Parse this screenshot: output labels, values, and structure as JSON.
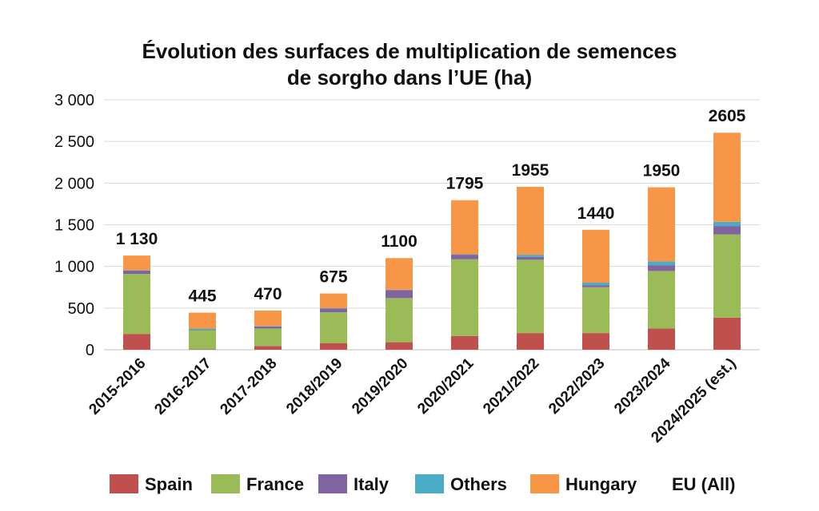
{
  "chart_data": {
    "type": "bar",
    "stacked": true,
    "title_lines": [
      "Évolution des surfaces de multiplication de semences",
      "de sorgho dans l’UE (ha)"
    ],
    "xlabel": "",
    "ylabel": "",
    "ylim": [
      0,
      3000
    ],
    "yticks": [
      {
        "value": 0,
        "label": "0"
      },
      {
        "value": 500,
        "label": "500"
      },
      {
        "value": 1000,
        "label": "1 000"
      },
      {
        "value": 1500,
        "label": "1 500"
      },
      {
        "value": 2000,
        "label": "2 000"
      },
      {
        "value": 2500,
        "label": "2 500"
      },
      {
        "value": 3000,
        "label": "3 000"
      }
    ],
    "grid": true,
    "legend_position": "bottom",
    "categories": [
      "2015-2016",
      "2016-2017",
      "2017-2018",
      "2018/2019",
      "2019/2020",
      "2020/2021",
      "2021/2022",
      "2022/2023",
      "2023/2024",
      "2024/2025 (est.)"
    ],
    "series": [
      {
        "name": "Spain",
        "color": "#c0504d",
        "values": [
          190,
          5,
          45,
          80,
          90,
          165,
          200,
          200,
          255,
          385
        ]
      },
      {
        "name": "France",
        "color": "#9bbb59",
        "values": [
          720,
          230,
          210,
          370,
          530,
          920,
          880,
          550,
          690,
          1000
        ]
      },
      {
        "name": "Italy",
        "color": "#8064a2",
        "values": [
          40,
          5,
          25,
          45,
          95,
          55,
          35,
          25,
          70,
          100
        ]
      },
      {
        "name": "Others",
        "color": "#4bacc6",
        "values": [
          5,
          15,
          5,
          5,
          5,
          5,
          25,
          30,
          45,
          50
        ]
      },
      {
        "name": "Hungary",
        "color": "#f79646",
        "values": [
          175,
          190,
          185,
          175,
          380,
          650,
          815,
          635,
          890,
          1070
        ]
      }
    ],
    "totals": {
      "name": "EU (All)",
      "values": [
        1130,
        445,
        470,
        675,
        1100,
        1795,
        1955,
        1440,
        1950,
        2605
      ],
      "labels": [
        "1 130",
        "445",
        "470",
        "675",
        "1100",
        "1795",
        "1955",
        "1440",
        "1950",
        "2605"
      ]
    }
  }
}
